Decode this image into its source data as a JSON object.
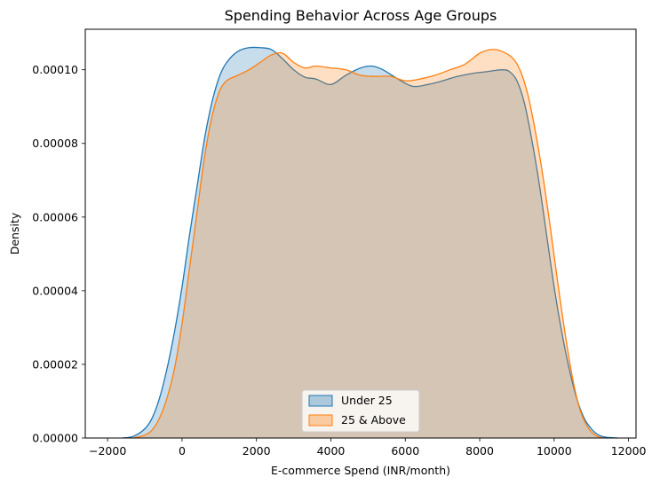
{
  "chart_data": {
    "type": "area",
    "title": "Spending Behavior Across Age Groups",
    "xlabel": "E-commerce Spend (INR/month)",
    "ylabel": "Density",
    "xlim": [
      -2600,
      12200
    ],
    "ylim": [
      0,
      0.000111
    ],
    "xticks": [
      -2000,
      0,
      2000,
      4000,
      6000,
      8000,
      10000,
      12000
    ],
    "xtick_labels": [
      "−2000",
      "0",
      "2000",
      "4000",
      "6000",
      "8000",
      "10000",
      "12000"
    ],
    "yticks": [
      0,
      2e-05,
      4e-05,
      6e-05,
      8e-05,
      0.0001
    ],
    "ytick_labels": [
      "0.00000",
      "0.00002",
      "0.00004",
      "0.00006",
      "0.00008",
      "0.00010"
    ],
    "grid": false,
    "legend_position": "bottom-center",
    "series": [
      {
        "name": "Under 25",
        "color": "#1f77b4",
        "fill": "#1f77b4",
        "fill_opacity": 0.25,
        "x": [
          -1600,
          -1300,
          -1000,
          -800,
          -600,
          -400,
          -200,
          0,
          200,
          400,
          600,
          800,
          1000,
          1200,
          1500,
          1800,
          2100,
          2400,
          2700,
          3000,
          3300,
          3600,
          4000,
          4400,
          4800,
          5100,
          5400,
          5800,
          6200,
          6600,
          7000,
          7400,
          7800,
          8200,
          8600,
          8800,
          9000,
          9200,
          9400,
          9600,
          9800,
          10000,
          10200,
          10400,
          10600,
          10800,
          11000,
          11200,
          11400,
          11700
        ],
        "y": [
          0.0,
          5e-07,
          2.5e-06,
          5.5e-06,
          1.1e-05,
          1.9e-05,
          2.9e-05,
          4.1e-05,
          5.5e-05,
          6.8e-05,
          8.1e-05,
          9.1e-05,
          9.8e-05,
          0.000102,
          0.000105,
          0.000106,
          0.000106,
          0.0001055,
          0.000103,
          0.0001,
          9.8e-05,
          9.75e-05,
          9.6e-05,
          9.85e-05,
          0.0001005,
          0.000101,
          0.0001,
          9.75e-05,
          9.55e-05,
          9.6e-05,
          9.7e-05,
          9.82e-05,
          9.9e-05,
          9.95e-05,
          0.0001,
          9.95e-05,
          9.7e-05,
          9.1e-05,
          8.1e-05,
          6.9e-05,
          5.5e-05,
          4.1e-05,
          2.9e-05,
          1.9e-05,
          1.1e-05,
          5.5e-06,
          2.5e-06,
          8e-07,
          2e-07,
          0.0
        ]
      },
      {
        "name": "25 & Above",
        "color": "#ff7f0e",
        "fill": "#ff7f0e",
        "fill_opacity": 0.25,
        "x": [
          -1300,
          -1000,
          -800,
          -600,
          -400,
          -200,
          0,
          200,
          400,
          600,
          800,
          1000,
          1200,
          1500,
          1800,
          2100,
          2400,
          2700,
          3000,
          3300,
          3600,
          4000,
          4400,
          4800,
          5200,
          5600,
          6000,
          6400,
          6800,
          7200,
          7600,
          8000,
          8300,
          8600,
          8900,
          9100,
          9300,
          9500,
          9700,
          9900,
          10100,
          10300,
          10500,
          10700,
          10900,
          11100,
          11300
        ],
        "y": [
          0.0,
          8e-07,
          2.2e-06,
          5.5e-06,
          1.1e-05,
          1.9e-05,
          3.1e-05,
          4.6e-05,
          6.1e-05,
          7.6e-05,
          8.7e-05,
          9.4e-05,
          9.7e-05,
          9.85e-05,
          0.0001,
          0.000102,
          0.000104,
          0.0001045,
          0.000102,
          0.0001005,
          0.000101,
          0.0001005,
          0.0001,
          9.85e-05,
          9.82e-05,
          9.82e-05,
          9.7e-05,
          9.75e-05,
          9.85e-05,
          0.0001,
          0.0001015,
          0.0001045,
          0.0001055,
          0.000105,
          0.000103,
          9.95e-05,
          9.3e-05,
          8.3e-05,
          7.1e-05,
          5.7e-05,
          4.2e-05,
          2.8e-05,
          1.6e-05,
          7.5e-06,
          3e-06,
          8e-07,
          0.0
        ]
      }
    ]
  }
}
